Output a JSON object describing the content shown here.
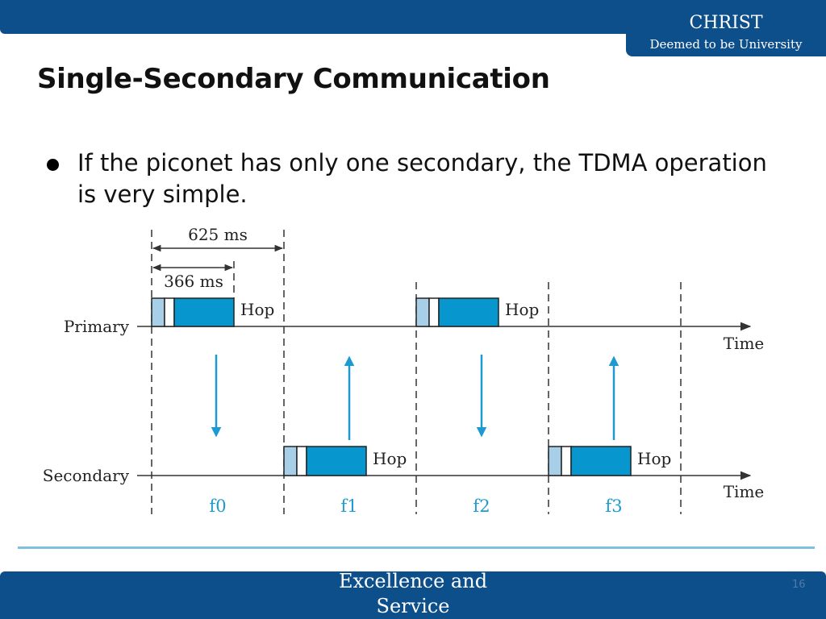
{
  "header": {
    "brand_name": "CHRIST",
    "brand_subtitle": "Deemed to be University"
  },
  "title": "Single-Secondary Communication",
  "bullet": "If the piconet has only one secondary, the TDMA operation is very simple.",
  "diagram": {
    "slot_label": "625 ms",
    "packet_label": "366 ms",
    "primary_label": "Primary",
    "secondary_label": "Secondary",
    "time_label": "Time",
    "hop_label": "Hop",
    "frequencies": [
      "f0",
      "f1",
      "f2",
      "f3"
    ],
    "colors": {
      "packet": "#0896cf",
      "header": "#a7cfe8",
      "arrow": "#1e9ad0",
      "freq_text": "#1e9ad0"
    }
  },
  "footer": {
    "text": "Excellence and Service",
    "page": "16"
  }
}
